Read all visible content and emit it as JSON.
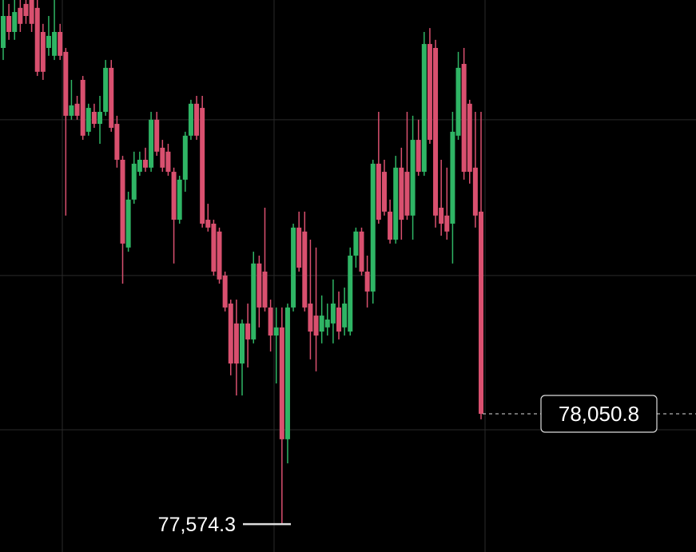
{
  "chart_data": {
    "type": "candlestick",
    "up_color": "#2fb565",
    "down_color": "#d9506f",
    "ylim": [
      77454,
      79838
    ],
    "ygrid": [
      79321,
      78648,
      77982
    ],
    "candles": [
      [
        79631,
        79838,
        79579,
        79769
      ],
      [
        79769,
        79821,
        79666,
        79700
      ],
      [
        79700,
        79838,
        79666,
        79786
      ],
      [
        79804,
        79838,
        79700,
        79735
      ],
      [
        79821,
        79838,
        79735,
        79769
      ],
      [
        79838,
        79838,
        79700,
        79735
      ],
      [
        79804,
        79838,
        79510,
        79528
      ],
      [
        79700,
        79735,
        79493,
        79528
      ],
      [
        79631,
        79769,
        79597,
        79683
      ],
      [
        79597,
        79838,
        79579,
        79700
      ],
      [
        79700,
        79735,
        79579,
        79597
      ],
      [
        79614,
        79631,
        78907,
        79338
      ],
      [
        79338,
        79493,
        79321,
        79383
      ],
      [
        79390,
        79424,
        79321,
        79338
      ],
      [
        79493,
        79510,
        79234,
        79252
      ],
      [
        79269,
        79390,
        79252,
        79372
      ],
      [
        79355,
        79390,
        79286,
        79303
      ],
      [
        79303,
        79424,
        79217,
        79355
      ],
      [
        79355,
        79579,
        79338,
        79545
      ],
      [
        79545,
        79579,
        79269,
        79286
      ],
      [
        79303,
        79338,
        79114,
        79148
      ],
      [
        79148,
        79165,
        78613,
        78786
      ],
      [
        78769,
        79010,
        78751,
        78976
      ],
      [
        78976,
        79183,
        78958,
        79131
      ],
      [
        79096,
        79183,
        79079,
        79148
      ],
      [
        79148,
        79200,
        79096,
        79114
      ],
      [
        79114,
        79355,
        79096,
        79321
      ],
      [
        79321,
        79355,
        79165,
        79183
      ],
      [
        79200,
        79234,
        79096,
        79114
      ],
      [
        79183,
        79217,
        79079,
        79096
      ],
      [
        79096,
        79114,
        78700,
        78889
      ],
      [
        78889,
        79079,
        78872,
        79062
      ],
      [
        79062,
        79269,
        79010,
        79252
      ],
      [
        79252,
        79407,
        79234,
        79390
      ],
      [
        79390,
        79424,
        79234,
        79252
      ],
      [
        79372,
        79424,
        78855,
        78872
      ],
      [
        78889,
        78958,
        78838,
        78855
      ],
      [
        78872,
        78889,
        78648,
        78665
      ],
      [
        78838,
        78855,
        78613,
        78631
      ],
      [
        78648,
        78665,
        78493,
        78510
      ],
      [
        78527,
        78544,
        78217,
        78268
      ],
      [
        78441,
        78544,
        78130,
        78268
      ],
      [
        78268,
        78458,
        78130,
        78441
      ],
      [
        78441,
        78527,
        78251,
        78372
      ],
      [
        78372,
        78751,
        78355,
        78700
      ],
      [
        78700,
        78734,
        78424,
        78510
      ],
      [
        78665,
        78941,
        78493,
        78510
      ],
      [
        78510,
        78544,
        78320,
        78389
      ],
      [
        78389,
        78510,
        78182,
        78424
      ],
      [
        78424,
        78510,
        77574.3,
        77941
      ],
      [
        77941,
        78527,
        77837,
        78510
      ],
      [
        78510,
        78872,
        78493,
        78855
      ],
      [
        78855,
        78924,
        78665,
        78682
      ],
      [
        78838,
        78924,
        78493,
        78510
      ],
      [
        78527,
        78803,
        78286,
        78406
      ],
      [
        78475,
        78769,
        78234,
        78389
      ],
      [
        78406,
        78562,
        78355,
        78475
      ],
      [
        78424,
        78527,
        78389,
        78458
      ],
      [
        78441,
        78631,
        78355,
        78527
      ],
      [
        78510,
        78579,
        78372,
        78406
      ],
      [
        78424,
        78596,
        78389,
        78527
      ],
      [
        78406,
        78769,
        78389,
        78734
      ],
      [
        78734,
        78855,
        78682,
        78838
      ],
      [
        78838,
        78855,
        78648,
        78665
      ],
      [
        78665,
        78734,
        78510,
        78579
      ],
      [
        78579,
        79148,
        78527,
        79131
      ],
      [
        79131,
        79355,
        78872,
        78889
      ],
      [
        79096,
        79148,
        78907,
        78924
      ],
      [
        78924,
        78976,
        78786,
        78803
      ],
      [
        78803,
        79165,
        78786,
        79114
      ],
      [
        79114,
        79200,
        78803,
        78889
      ],
      [
        79096,
        79355,
        78889,
        78907
      ],
      [
        78907,
        79338,
        78803,
        79234
      ],
      [
        79234,
        79321,
        79079,
        79096
      ],
      [
        79096,
        79700,
        79079,
        79648
      ],
      [
        79648,
        79717,
        79217,
        79234
      ],
      [
        79631,
        79666,
        78855,
        78907
      ],
      [
        78941,
        79148,
        78820,
        78872
      ],
      [
        78907,
        79114,
        78803,
        78838
      ],
      [
        78872,
        79355,
        78700,
        79269
      ],
      [
        79252,
        79614,
        79234,
        79545
      ],
      [
        79562,
        79631,
        79062,
        79096
      ],
      [
        79390,
        79407,
        79045,
        79096
      ],
      [
        79114,
        79355,
        78855,
        78907
      ],
      [
        78924,
        79355,
        78027,
        78050.8
      ]
    ],
    "last_price": {
      "value": 78050.8,
      "label": "78,050.8"
    },
    "low_price": {
      "value": 77574.3,
      "label": "77,574.3"
    }
  }
}
